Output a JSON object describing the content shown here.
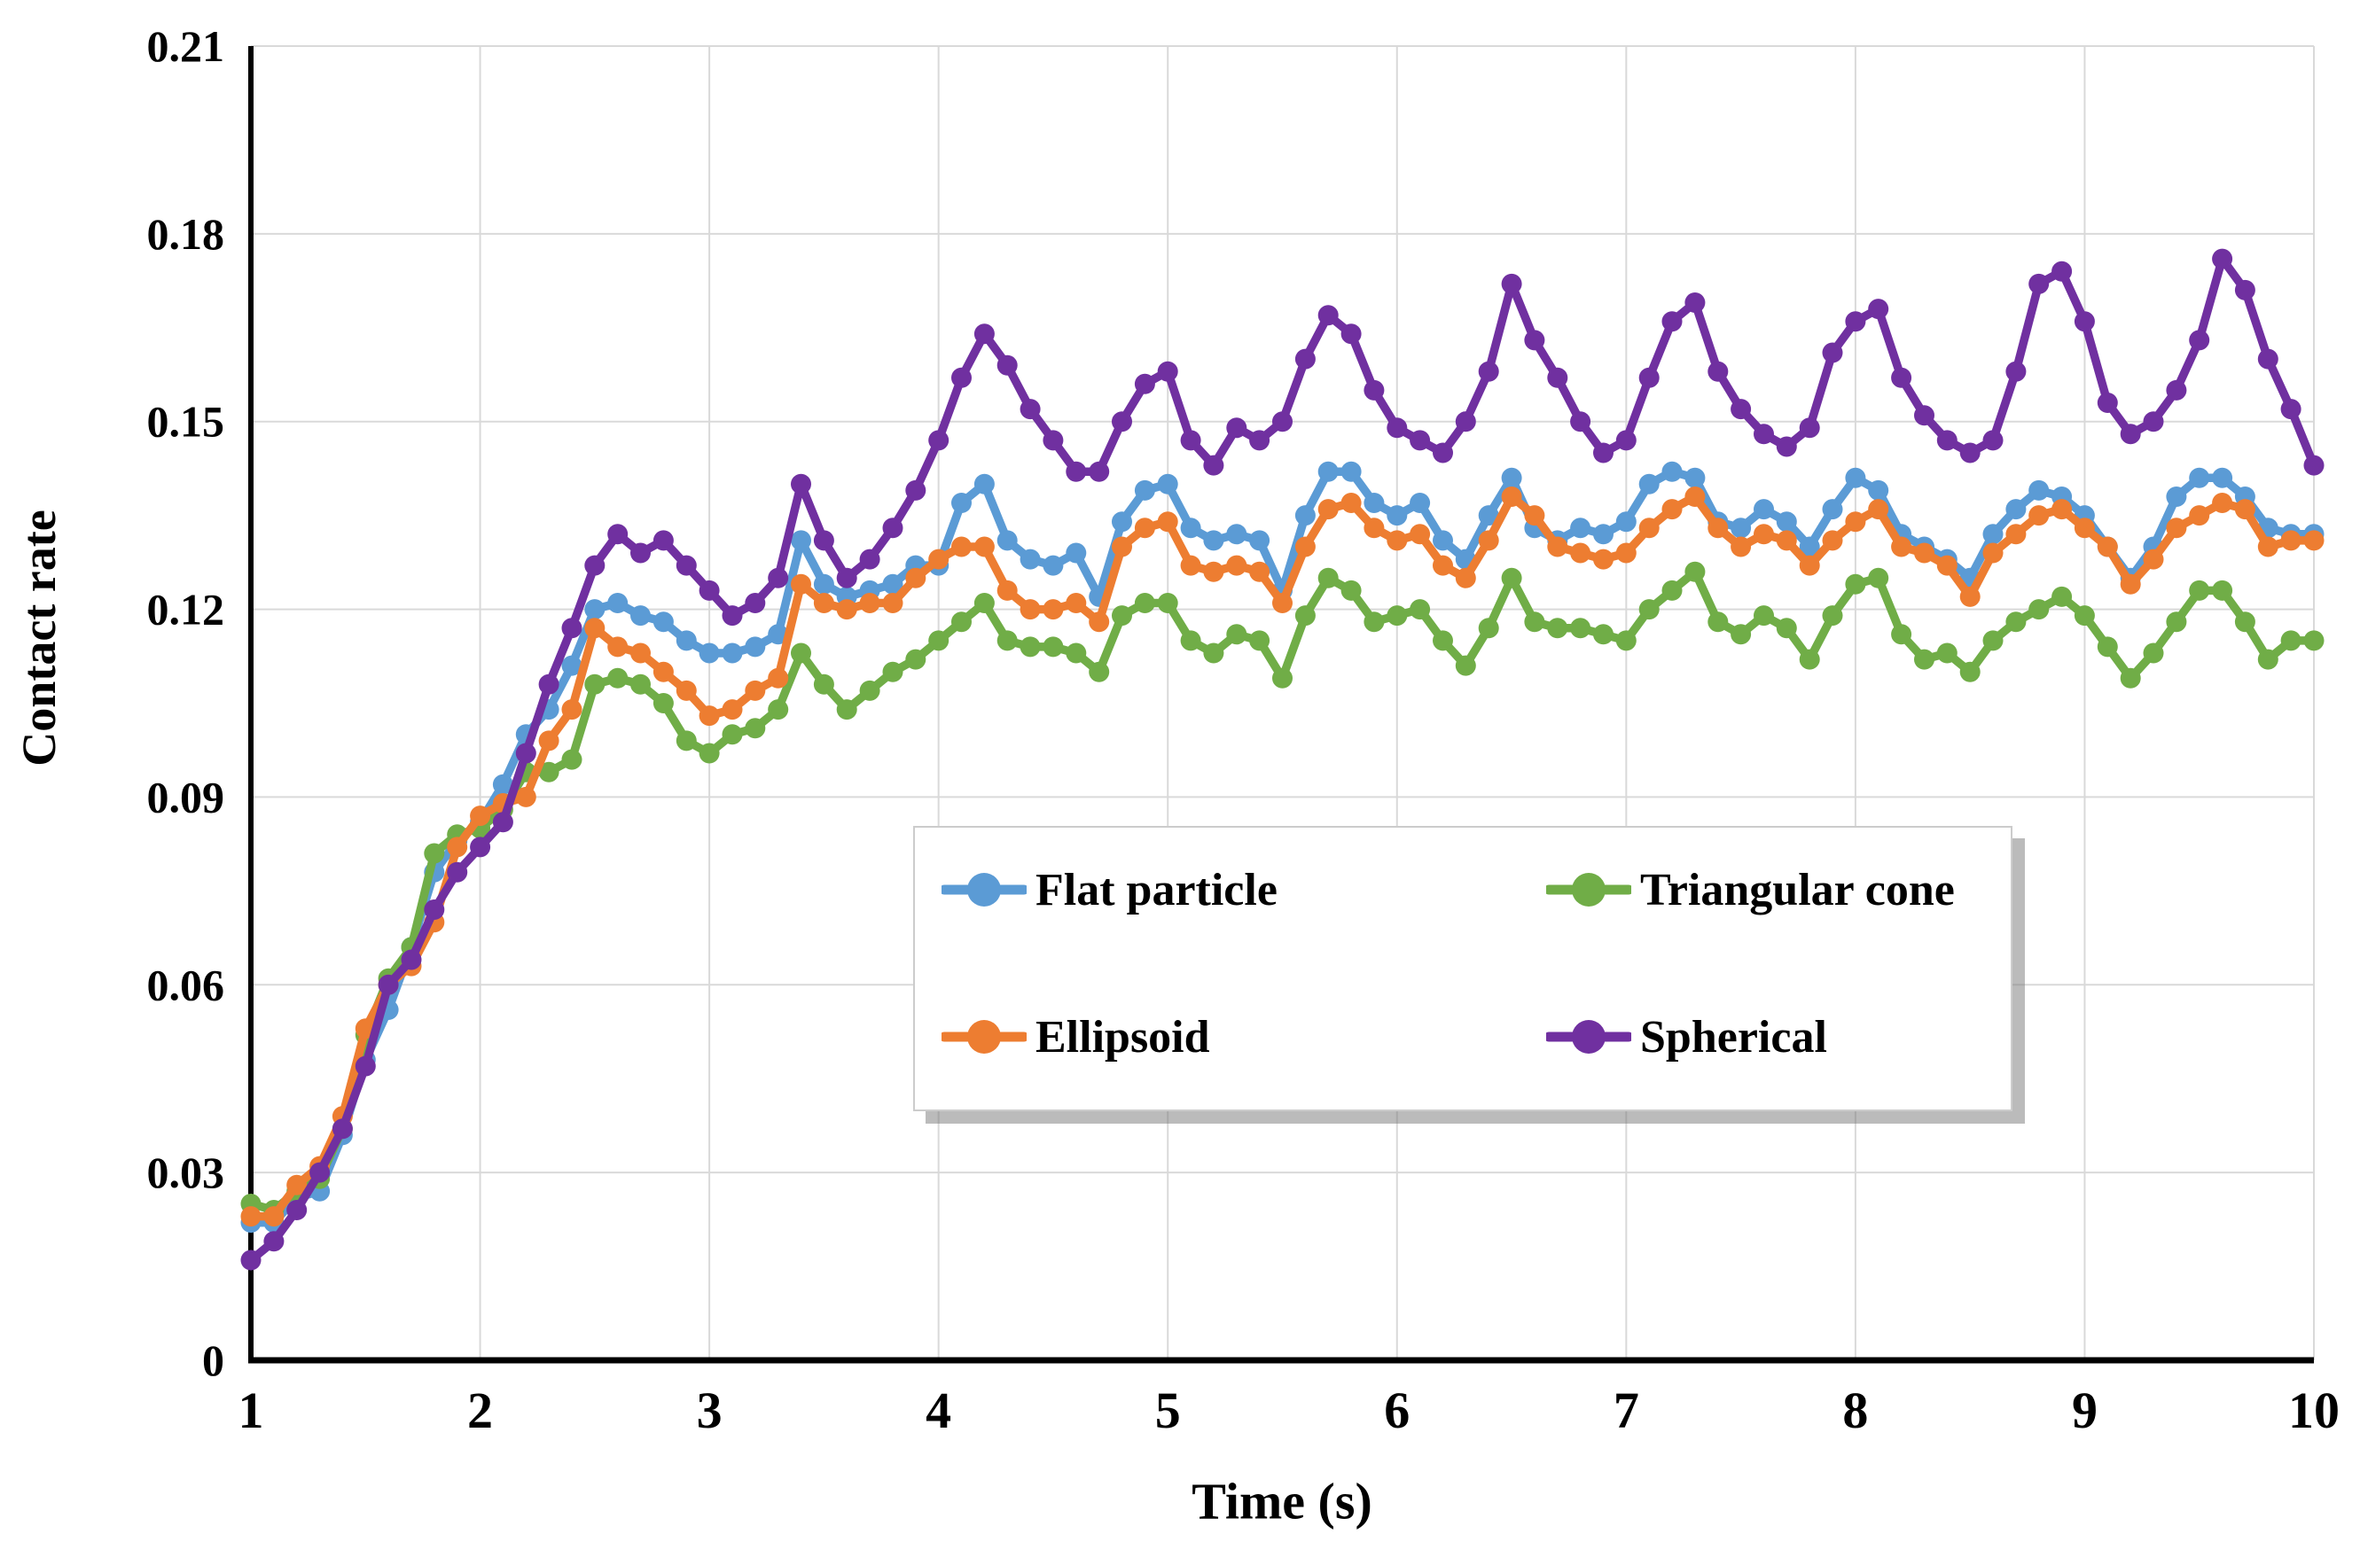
{
  "figure": {
    "background": "#ffffff"
  },
  "chart_data": {
    "type": "line",
    "title": "",
    "xlabel": "Time (s)",
    "ylabel": "Contact rate",
    "xlim": [
      1,
      10
    ],
    "ylim": [
      0,
      0.21
    ],
    "grid": true,
    "grid_color": "#d9d9d9",
    "axis_color": "#000000",
    "legend_position": "inside-center-box",
    "x_start": 1.0,
    "x_step": 0.1,
    "marker": "circle",
    "x_ticks": [
      {
        "value": 1,
        "label": "1"
      },
      {
        "value": 2,
        "label": "2"
      },
      {
        "value": 3,
        "label": "3"
      },
      {
        "value": 4,
        "label": "4"
      },
      {
        "value": 5,
        "label": "5"
      },
      {
        "value": 6,
        "label": "6"
      },
      {
        "value": 7,
        "label": "7"
      },
      {
        "value": 8,
        "label": "8"
      },
      {
        "value": 9,
        "label": "9"
      },
      {
        "value": 10,
        "label": "10"
      }
    ],
    "y_ticks": [
      {
        "value": 0,
        "label": "0"
      },
      {
        "value": 0.03,
        "label": "0.03"
      },
      {
        "value": 0.06,
        "label": "0.06"
      },
      {
        "value": 0.09,
        "label": "0.09"
      },
      {
        "value": 0.12,
        "label": "0.12"
      },
      {
        "value": 0.15,
        "label": "0.15"
      },
      {
        "value": 0.18,
        "label": "0.18"
      },
      {
        "value": 0.21,
        "label": "0.21"
      }
    ],
    "series": [
      {
        "name": "Flat particle",
        "color": "#5B9BD5",
        "values": [
          0.022,
          0.022,
          0.026,
          0.027,
          0.036,
          0.048,
          0.056,
          0.066,
          0.078,
          0.083,
          0.086,
          0.092,
          0.1,
          0.104,
          0.111,
          0.12,
          0.121,
          0.119,
          0.118,
          0.115,
          0.113,
          0.113,
          0.114,
          0.116,
          0.131,
          0.124,
          0.122,
          0.123,
          0.124,
          0.127,
          0.127,
          0.137,
          0.14,
          0.131,
          0.128,
          0.127,
          0.129,
          0.122,
          0.134,
          0.139,
          0.14,
          0.133,
          0.131,
          0.132,
          0.131,
          0.123,
          0.135,
          0.142,
          0.142,
          0.137,
          0.135,
          0.137,
          0.131,
          0.128,
          0.135,
          0.141,
          0.133,
          0.131,
          0.133,
          0.132,
          0.134,
          0.14,
          0.142,
          0.141,
          0.134,
          0.133,
          0.136,
          0.134,
          0.13,
          0.136,
          0.141,
          0.139,
          0.132,
          0.13,
          0.128,
          0.125,
          0.132,
          0.136,
          0.139,
          0.138,
          0.135,
          0.13,
          0.125,
          0.13,
          0.138,
          0.141,
          0.141,
          0.138,
          0.133,
          0.132,
          0.132
        ]
      },
      {
        "name": "Ellipsoid",
        "color": "#ED7D31",
        "values": [
          0.023,
          0.023,
          0.028,
          0.031,
          0.039,
          0.053,
          0.06,
          0.063,
          0.07,
          0.082,
          0.087,
          0.089,
          0.09,
          0.099,
          0.104,
          0.117,
          0.114,
          0.113,
          0.11,
          0.107,
          0.103,
          0.104,
          0.107,
          0.109,
          0.124,
          0.121,
          0.12,
          0.121,
          0.121,
          0.125,
          0.128,
          0.13,
          0.13,
          0.123,
          0.12,
          0.12,
          0.121,
          0.118,
          0.13,
          0.133,
          0.134,
          0.127,
          0.126,
          0.127,
          0.126,
          0.121,
          0.13,
          0.136,
          0.137,
          0.133,
          0.131,
          0.132,
          0.127,
          0.125,
          0.131,
          0.138,
          0.135,
          0.13,
          0.129,
          0.128,
          0.129,
          0.133,
          0.136,
          0.138,
          0.133,
          0.13,
          0.132,
          0.131,
          0.127,
          0.131,
          0.134,
          0.136,
          0.13,
          0.129,
          0.127,
          0.122,
          0.129,
          0.132,
          0.135,
          0.136,
          0.133,
          0.13,
          0.124,
          0.128,
          0.133,
          0.135,
          0.137,
          0.136,
          0.13,
          0.131,
          0.131
        ]
      },
      {
        "name": "Triangular cone",
        "color": "#70AD47",
        "values": [
          0.025,
          0.024,
          0.027,
          0.029,
          0.037,
          0.052,
          0.061,
          0.066,
          0.081,
          0.084,
          0.085,
          0.088,
          0.094,
          0.094,
          0.096,
          0.108,
          0.109,
          0.108,
          0.105,
          0.099,
          0.097,
          0.1,
          0.101,
          0.104,
          0.113,
          0.108,
          0.104,
          0.107,
          0.11,
          0.112,
          0.115,
          0.118,
          0.121,
          0.115,
          0.114,
          0.114,
          0.113,
          0.11,
          0.119,
          0.121,
          0.121,
          0.115,
          0.113,
          0.116,
          0.115,
          0.109,
          0.119,
          0.125,
          0.123,
          0.118,
          0.119,
          0.12,
          0.115,
          0.111,
          0.117,
          0.125,
          0.118,
          0.117,
          0.117,
          0.116,
          0.115,
          0.12,
          0.123,
          0.126,
          0.118,
          0.116,
          0.119,
          0.117,
          0.112,
          0.119,
          0.124,
          0.125,
          0.116,
          0.112,
          0.113,
          0.11,
          0.115,
          0.118,
          0.12,
          0.122,
          0.119,
          0.114,
          0.109,
          0.113,
          0.118,
          0.123,
          0.123,
          0.118,
          0.112,
          0.115,
          0.115
        ]
      },
      {
        "name": "Spherical",
        "color": "#7030A0",
        "values": [
          0.016,
          0.019,
          0.024,
          0.03,
          0.037,
          0.047,
          0.06,
          0.064,
          0.072,
          0.078,
          0.082,
          0.086,
          0.097,
          0.108,
          0.117,
          0.127,
          0.132,
          0.129,
          0.131,
          0.127,
          0.123,
          0.119,
          0.121,
          0.125,
          0.14,
          0.131,
          0.125,
          0.128,
          0.133,
          0.139,
          0.147,
          0.157,
          0.164,
          0.159,
          0.152,
          0.147,
          0.142,
          0.142,
          0.15,
          0.156,
          0.158,
          0.147,
          0.143,
          0.149,
          0.147,
          0.15,
          0.16,
          0.167,
          0.164,
          0.155,
          0.149,
          0.147,
          0.145,
          0.15,
          0.158,
          0.172,
          0.163,
          0.157,
          0.15,
          0.145,
          0.147,
          0.157,
          0.166,
          0.169,
          0.158,
          0.152,
          0.148,
          0.146,
          0.149,
          0.161,
          0.166,
          0.168,
          0.157,
          0.151,
          0.147,
          0.145,
          0.147,
          0.158,
          0.172,
          0.174,
          0.166,
          0.153,
          0.148,
          0.15,
          0.155,
          0.163,
          0.176,
          0.171,
          0.16,
          0.152,
          0.143
        ]
      }
    ],
    "legend_entries": [
      "Flat particle",
      "Triangular cone",
      "Ellipsoid",
      "Spherical"
    ]
  }
}
